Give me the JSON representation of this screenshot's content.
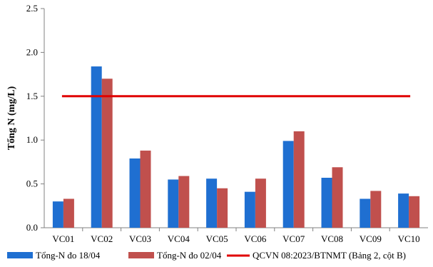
{
  "chart_data": {
    "type": "bar",
    "title": "",
    "xlabel": "",
    "ylabel": "Tổng N (mg/L)",
    "ylim": [
      0,
      2.5
    ],
    "yticks": [
      "0.0",
      "0.5",
      "1.0",
      "1.5",
      "2.0",
      "2.5"
    ],
    "categories": [
      "VC01",
      "VC02",
      "VC03",
      "VC04",
      "VC05",
      "VC06",
      "VC07",
      "VC08",
      "VC09",
      "VC10"
    ],
    "series": [
      {
        "name": "Tổng-N đo 18/04",
        "color": "#1f6fd1",
        "values": [
          0.3,
          1.84,
          0.79,
          0.55,
          0.56,
          0.41,
          0.99,
          0.57,
          0.33,
          0.39
        ]
      },
      {
        "name": "Tổng-N đo 02/04",
        "color": "#c0504d",
        "values": [
          0.33,
          1.7,
          0.88,
          0.59,
          0.45,
          0.56,
          1.1,
          0.69,
          0.42,
          0.36
        ]
      }
    ],
    "reference_line": {
      "name": "QCVN 08:2023/BTNMT (Bảng 2, cột B)",
      "value": 1.5,
      "color": "#e00000"
    },
    "grid": false,
    "legend_position": "bottom"
  }
}
